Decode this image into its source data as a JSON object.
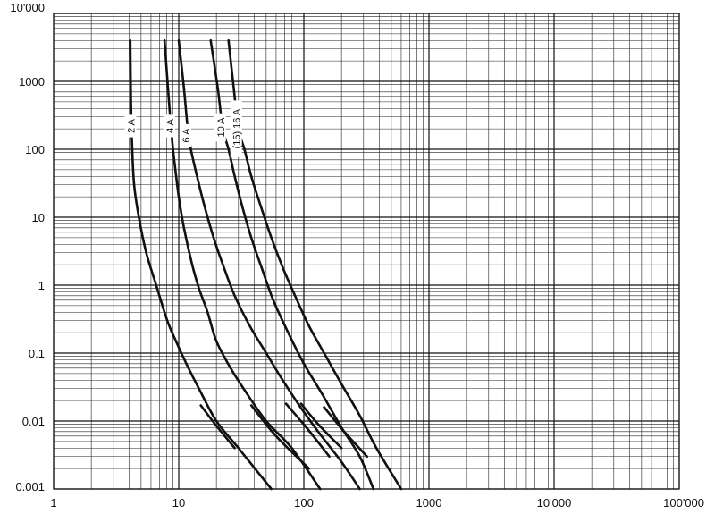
{
  "chart_data": {
    "type": "line",
    "title": "",
    "xlabel": "",
    "ylabel": "",
    "x_scale": "log",
    "y_scale": "log",
    "xlim": [
      1,
      100000
    ],
    "ylim": [
      0.001,
      10000
    ],
    "grid": true,
    "x_ticks": [
      {
        "value": 1,
        "label": "1"
      },
      {
        "value": 10,
        "label": "10"
      },
      {
        "value": 100,
        "label": "100"
      },
      {
        "value": 1000,
        "label": "1000"
      },
      {
        "value": 10000,
        "label": "10'000"
      },
      {
        "value": 100000,
        "label": "100'000"
      }
    ],
    "y_ticks": [
      {
        "value": 0.001,
        "label": "0.001"
      },
      {
        "value": 0.01,
        "label": "0.01"
      },
      {
        "value": 0.1,
        "label": "0.1"
      },
      {
        "value": 1,
        "label": "1"
      },
      {
        "value": 10,
        "label": "10"
      },
      {
        "value": 100,
        "label": "100"
      },
      {
        "value": 1000,
        "label": "1000"
      },
      {
        "value": 10000,
        "label": "10'000"
      }
    ],
    "series": [
      {
        "name": "2 A",
        "points": [
          [
            4.1,
            4000
          ],
          [
            4.15,
            500
          ],
          [
            4.25,
            100
          ],
          [
            4.4,
            30
          ],
          [
            4.8,
            10
          ],
          [
            5.5,
            3
          ],
          [
            6.6,
            1
          ],
          [
            8.1,
            0.3
          ],
          [
            9.5,
            0.15
          ],
          [
            11.5,
            0.07
          ],
          [
            14.5,
            0.03
          ],
          [
            20,
            0.01
          ],
          [
            30,
            0.004
          ],
          [
            55,
            0.001
          ]
        ],
        "tail": [
          [
            15,
            0.017
          ],
          [
            20,
            0.0085
          ],
          [
            28,
            0.004
          ]
        ]
      },
      {
        "name": "4 A",
        "points": [
          [
            7.7,
            4000
          ],
          [
            8.2,
            800
          ],
          [
            8.6,
            250
          ],
          [
            9.0,
            100
          ],
          [
            9.4,
            50
          ],
          [
            10.0,
            20
          ],
          [
            11.0,
            7
          ],
          [
            12.8,
            2
          ],
          [
            14.5,
            0.9
          ],
          [
            17,
            0.4
          ],
          [
            20,
            0.15
          ],
          [
            26,
            0.06
          ],
          [
            33,
            0.03
          ],
          [
            50,
            0.01
          ],
          [
            80,
            0.004
          ],
          [
            135,
            0.001
          ]
        ],
        "tail": [
          [
            38,
            0.017
          ],
          [
            60,
            0.006
          ],
          [
            110,
            0.002
          ]
        ]
      },
      {
        "name": "6 A",
        "points": [
          [
            10,
            4000
          ],
          [
            11,
            800
          ],
          [
            11.8,
            200
          ],
          [
            12.5,
            100
          ],
          [
            14,
            40
          ],
          [
            16,
            15
          ],
          [
            19,
            5
          ],
          [
            23,
            1.8
          ],
          [
            28,
            0.7
          ],
          [
            37,
            0.25
          ],
          [
            50,
            0.1
          ],
          [
            65,
            0.045
          ],
          [
            90,
            0.018
          ],
          [
            130,
            0.007
          ],
          [
            200,
            0.0025
          ],
          [
            280,
            0.001
          ]
        ],
        "tail": [
          [
            72,
            0.018
          ],
          [
            105,
            0.008
          ],
          [
            160,
            0.003
          ]
        ]
      },
      {
        "name": "10 A",
        "points": [
          [
            18,
            4000
          ],
          [
            20.5,
            800
          ],
          [
            22.5,
            200
          ],
          [
            25,
            100
          ],
          [
            28,
            40
          ],
          [
            32,
            15
          ],
          [
            38,
            5
          ],
          [
            46,
            1.8
          ],
          [
            57,
            0.6
          ],
          [
            75,
            0.2
          ],
          [
            100,
            0.07
          ],
          [
            140,
            0.025
          ],
          [
            200,
            0.008
          ],
          [
            280,
            0.003
          ],
          [
            360,
            0.001
          ]
        ],
        "tail": [
          [
            95,
            0.018
          ],
          [
            130,
            0.009
          ],
          [
            200,
            0.004
          ]
        ]
      },
      {
        "name": "(15) 16 A",
        "points": [
          [
            25,
            4000
          ],
          [
            27.5,
            800
          ],
          [
            30,
            200
          ],
          [
            33.5,
            100
          ],
          [
            38,
            40
          ],
          [
            45,
            15
          ],
          [
            55,
            5
          ],
          [
            68,
            1.8
          ],
          [
            85,
            0.7
          ],
          [
            110,
            0.25
          ],
          [
            150,
            0.09
          ],
          [
            200,
            0.035
          ],
          [
            280,
            0.012
          ],
          [
            380,
            0.004
          ],
          [
            600,
            0.001
          ]
        ],
        "tail": [
          [
            145,
            0.016
          ],
          [
            210,
            0.007
          ],
          [
            320,
            0.003
          ]
        ]
      }
    ],
    "curve_labels": [
      {
        "text": "2 A",
        "x": 4.15,
        "y": 220
      },
      {
        "text": "4 A",
        "x": 8.45,
        "y": 220
      },
      {
        "text": "6 A",
        "x": 11.4,
        "y": 160
      },
      {
        "text": "10 A",
        "x": 21.6,
        "y": 210
      },
      {
        "text": "(15) 16 A",
        "x": 29,
        "y": 200
      }
    ]
  }
}
